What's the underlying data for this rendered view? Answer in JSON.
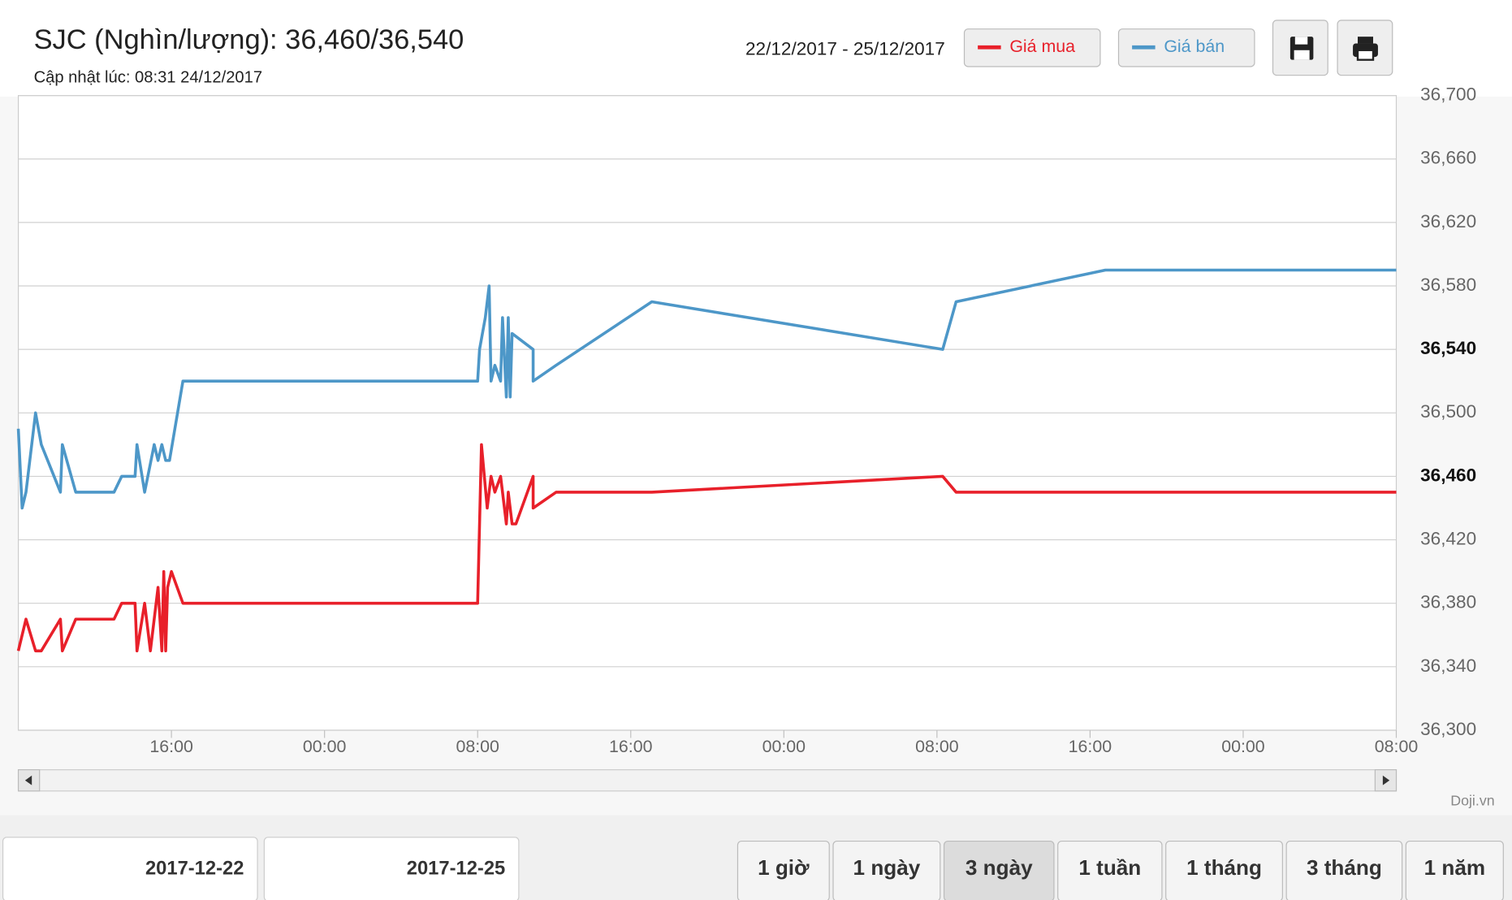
{
  "header": {
    "title": "SJC (Nghìn/lượng): 36,460/36,540",
    "updated": "Cập nhật lúc: 08:31 24/12/2017",
    "date_range": "22/12/2017 - 25/12/2017"
  },
  "chart_data": {
    "type": "line",
    "series": [
      {
        "name": "Giá mua",
        "color": "#e8202a",
        "x": [
          0,
          0.4,
          0.9,
          1.2,
          2.2,
          2.3,
          3.0,
          5.0,
          5.4,
          6.1,
          6.2,
          6.6,
          6.9,
          7.3,
          7.5,
          7.6,
          7.7,
          7.8,
          8.0,
          8.6,
          24.0,
          24.2,
          24.5,
          24.7,
          24.9,
          25.2,
          25.4,
          25.5,
          25.6,
          25.8,
          26.0,
          26.9,
          26.9,
          28.1,
          33.1,
          48.3,
          49.0,
          72.0
        ],
        "values": [
          36350,
          36370,
          36350,
          36350,
          36370,
          36350,
          36370,
          36370,
          36380,
          36380,
          36350,
          36380,
          36350,
          36390,
          36350,
          36400,
          36350,
          36390,
          36400,
          36380,
          36380,
          36480,
          36440,
          36460,
          36450,
          36460,
          36440,
          36430,
          36450,
          36430,
          36430,
          36460,
          36440,
          36450,
          36450,
          36460,
          36450,
          36450
        ]
      },
      {
        "name": "Giá bán",
        "color": "#4d97c8",
        "x": [
          0,
          0.2,
          0.4,
          0.9,
          1.2,
          2.2,
          2.3,
          3.0,
          5.0,
          5.4,
          6.1,
          6.2,
          6.6,
          7.1,
          7.3,
          7.5,
          7.7,
          7.9,
          8.6,
          24.0,
          24.1,
          24.4,
          24.6,
          24.7,
          24.9,
          25.2,
          25.3,
          25.5,
          25.6,
          25.7,
          25.8,
          26.9,
          26.9,
          28.1,
          33.1,
          48.3,
          49.0,
          56.8,
          72.0
        ],
        "values": [
          36490,
          36440,
          36450,
          36500,
          36480,
          36450,
          36480,
          36450,
          36450,
          36460,
          36460,
          36480,
          36450,
          36480,
          36470,
          36480,
          36470,
          36470,
          36520,
          36520,
          36540,
          36560,
          36580,
          36520,
          36530,
          36520,
          36560,
          36510,
          36560,
          36510,
          36550,
          36540,
          36520,
          36530,
          36570,
          36540,
          36570,
          36590,
          36590
        ]
      }
    ],
    "xlim": [
      0,
      72
    ],
    "xticks": [
      {
        "value": 8,
        "label": "16:00"
      },
      {
        "value": 16,
        "label": "00:00"
      },
      {
        "value": 24,
        "label": "08:00"
      },
      {
        "value": 32,
        "label": "16:00"
      },
      {
        "value": 40,
        "label": "00:00"
      },
      {
        "value": 48,
        "label": "08:00"
      },
      {
        "value": 56,
        "label": "16:00"
      },
      {
        "value": 64,
        "label": "00:00"
      },
      {
        "value": 72,
        "label": "08:00"
      }
    ],
    "ylim": [
      36300,
      36700
    ],
    "yticks": [
      {
        "value": 36300,
        "label": "36,300"
      },
      {
        "value": 36340,
        "label": "36,340"
      },
      {
        "value": 36380,
        "label": "36,380"
      },
      {
        "value": 36420,
        "label": "36,420"
      },
      {
        "value": 36460,
        "label": "36,460"
      },
      {
        "value": 36500,
        "label": "36,500"
      },
      {
        "value": 36540,
        "label": "36,540"
      },
      {
        "value": 36580,
        "label": "36,580"
      },
      {
        "value": 36620,
        "label": "36,620"
      },
      {
        "value": 36660,
        "label": "36,660"
      },
      {
        "value": 36700,
        "label": "36,700"
      }
    ],
    "highlighted_yticks": [
      36460,
      36540
    ],
    "grid": true,
    "credit": "Doji.vn"
  },
  "range_inputs": [
    "2017-12-22",
    "2017-12-25"
  ],
  "range_buttons": {
    "labels": [
      "1 giờ",
      "1 ngày",
      "3 ngày",
      "1 tuần",
      "1 tháng",
      "3 tháng",
      "1 năm"
    ],
    "selected": 2
  }
}
